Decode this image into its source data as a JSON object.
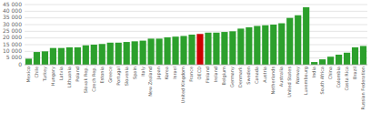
{
  "chart_data": {
    "type": "bar",
    "categories": [
      "Mexico",
      "Chile",
      "Turkey",
      "Hungary",
      "Latvia",
      "Lithuania",
      "Poland",
      "Slovak Rep.",
      "Czech Rep.",
      "Estonia",
      "Greece",
      "Portugal",
      "Slovenia",
      "Spain",
      "Italy",
      "New Zealand",
      "Japan",
      "Korea",
      "Israel",
      "United Kingdom",
      "France",
      "OECD",
      "Finland",
      "Ireland",
      "Belgium",
      "Germany",
      "Denmark",
      "Sweden",
      "Canada",
      "Austria",
      "Netherlands",
      "Australia",
      "United States",
      "Norway",
      "Luxembourg",
      "India",
      "South Africa",
      "China",
      "Colombia",
      "Costa Rica",
      "Brazil",
      "Russian Federation"
    ],
    "values": [
      4500,
      9500,
      10000,
      12500,
      12500,
      13000,
      13000,
      14500,
      15000,
      15500,
      16500,
      16500,
      17000,
      17500,
      18000,
      19500,
      19500,
      20500,
      21000,
      21500,
      22500,
      23000,
      24000,
      24000,
      24500,
      25000,
      27000,
      28000,
      29000,
      29500,
      30000,
      31000,
      35000,
      37000,
      43000,
      2000,
      4000,
      6000,
      7500,
      9000,
      13000,
      14000
    ],
    "colors": [
      "#2ca02c",
      "#2ca02c",
      "#2ca02c",
      "#2ca02c",
      "#2ca02c",
      "#2ca02c",
      "#2ca02c",
      "#2ca02c",
      "#2ca02c",
      "#2ca02c",
      "#2ca02c",
      "#2ca02c",
      "#2ca02c",
      "#2ca02c",
      "#2ca02c",
      "#2ca02c",
      "#2ca02c",
      "#2ca02c",
      "#2ca02c",
      "#2ca02c",
      "#2ca02c",
      "#cc0000",
      "#2ca02c",
      "#2ca02c",
      "#2ca02c",
      "#2ca02c",
      "#2ca02c",
      "#2ca02c",
      "#2ca02c",
      "#2ca02c",
      "#2ca02c",
      "#2ca02c",
      "#2ca02c",
      "#2ca02c",
      "#2ca02c",
      "#2ca02c",
      "#2ca02c",
      "#2ca02c",
      "#2ca02c",
      "#2ca02c",
      "#2ca02c",
      "#2ca02c"
    ],
    "ylim": [
      0,
      45000
    ],
    "yticks": [
      0,
      {
        "value": 5000,
        "label": "5 000"
      },
      {
        "value": 10000,
        "label": "10 000"
      },
      {
        "value": 15000,
        "label": "15 000"
      },
      {
        "value": 20000,
        "label": "20 000"
      },
      {
        "value": 25000,
        "label": "25 000"
      },
      {
        "value": 30000,
        "label": "30 000"
      },
      {
        "value": 35000,
        "label": "35 000"
      },
      {
        "value": 40000,
        "label": "40 000"
      },
      {
        "value": 45000,
        "label": "45 000"
      }
    ],
    "grid": true
  }
}
